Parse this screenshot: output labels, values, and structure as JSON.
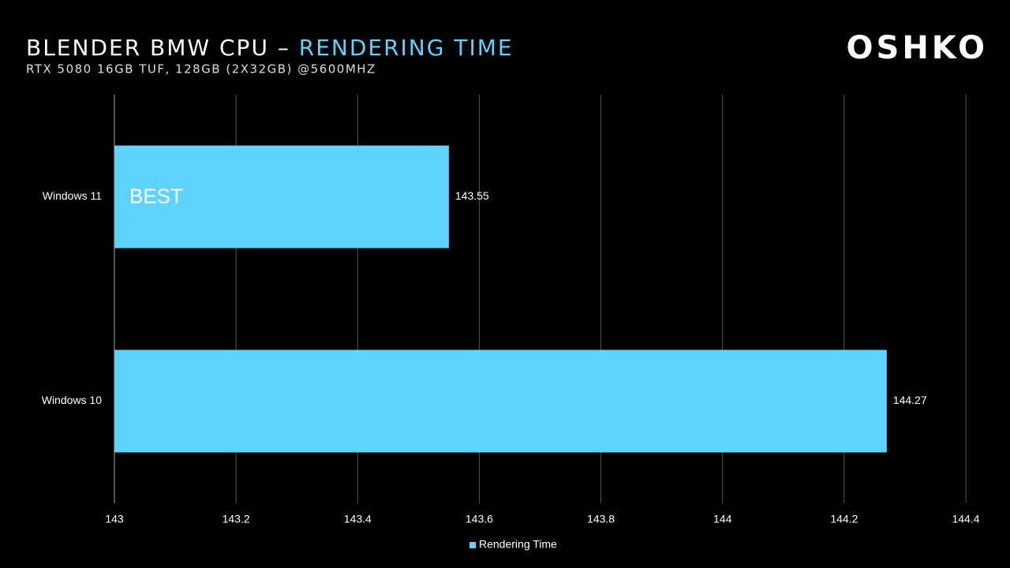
{
  "chart_data": {
    "type": "bar",
    "orientation": "horizontal",
    "title": {
      "text": "BLENDER BMW CPU –",
      "highlight": "RENDERING TIME"
    },
    "subtitle": "RTX 5080 16GB TUF, 128GB (2X32GB) @5600MHZ",
    "brand": "OSHKO",
    "annotation": "BEST",
    "categories": [
      "Windows 11",
      "Windows 10"
    ],
    "series": [
      {
        "name": "Rendering Time",
        "color": "#5dd3fe",
        "values": [
          143.55,
          144.27
        ]
      }
    ],
    "xlim": [
      143,
      144.4
    ],
    "xticks": [
      143,
      143.2,
      143.4,
      143.6,
      143.8,
      144,
      144.2,
      144.4
    ],
    "grid": true,
    "legend": "bottom"
  }
}
